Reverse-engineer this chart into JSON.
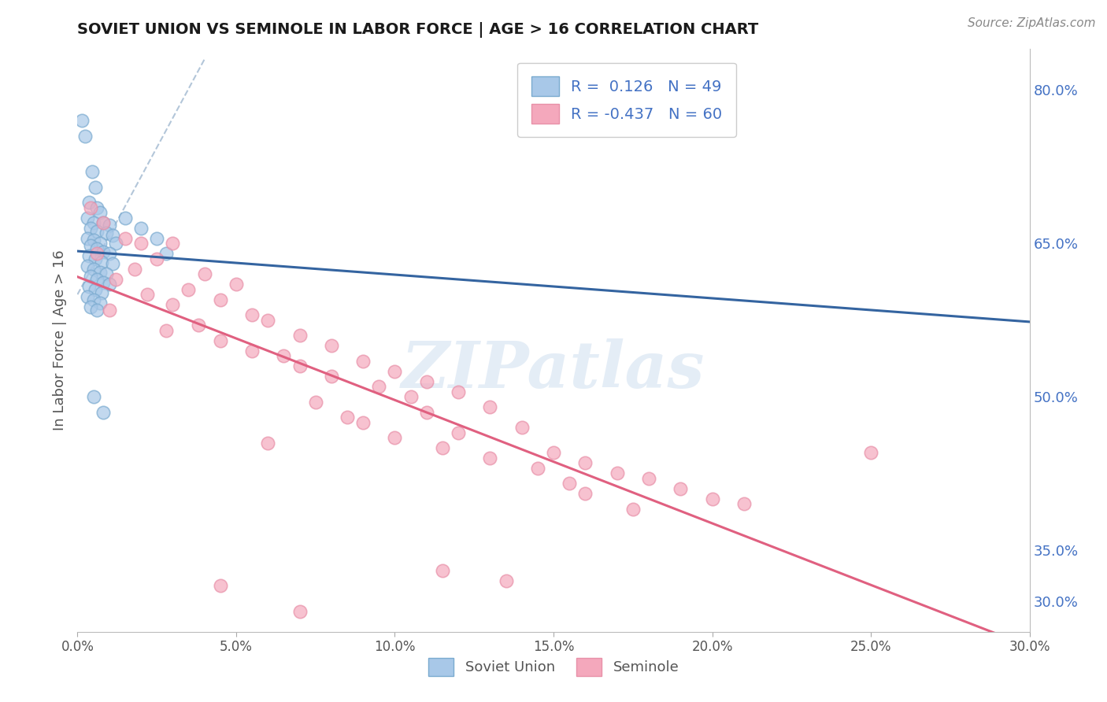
{
  "title": "SOVIET UNION VS SEMINOLE IN LABOR FORCE | AGE > 16 CORRELATION CHART",
  "source": "Source: ZipAtlas.com",
  "ylabel": "In Labor Force | Age > 16",
  "x_tick_vals": [
    0.0,
    5.0,
    10.0,
    15.0,
    20.0,
    25.0,
    30.0
  ],
  "y_tick_vals_right": [
    30.0,
    35.0,
    50.0,
    65.0,
    80.0
  ],
  "xlim": [
    0.0,
    30.0
  ],
  "ylim": [
    27.0,
    84.0
  ],
  "R_blue": 0.126,
  "N_blue": 49,
  "R_pink": -0.437,
  "N_pink": 60,
  "blue_color": "#a8c8e8",
  "pink_color": "#f4a8bc",
  "blue_edge_color": "#7aaacf",
  "pink_edge_color": "#e890a8",
  "blue_line_color": "#3464a0",
  "pink_line_color": "#e06080",
  "dash_line_color": "#a0b8d0",
  "blue_scatter": [
    [
      0.15,
      77.0
    ],
    [
      0.25,
      75.5
    ],
    [
      0.45,
      72.0
    ],
    [
      0.55,
      70.5
    ],
    [
      0.35,
      69.0
    ],
    [
      0.6,
      68.5
    ],
    [
      0.7,
      68.0
    ],
    [
      0.3,
      67.5
    ],
    [
      0.5,
      67.0
    ],
    [
      0.8,
      67.0
    ],
    [
      1.0,
      66.8
    ],
    [
      0.4,
      66.5
    ],
    [
      0.6,
      66.2
    ],
    [
      0.9,
      66.0
    ],
    [
      1.1,
      65.8
    ],
    [
      0.3,
      65.5
    ],
    [
      0.5,
      65.3
    ],
    [
      0.7,
      65.0
    ],
    [
      1.2,
      65.0
    ],
    [
      0.4,
      64.8
    ],
    [
      0.6,
      64.5
    ],
    [
      0.8,
      64.2
    ],
    [
      1.0,
      64.0
    ],
    [
      0.35,
      63.8
    ],
    [
      0.55,
      63.5
    ],
    [
      0.75,
      63.2
    ],
    [
      1.1,
      63.0
    ],
    [
      0.3,
      62.8
    ],
    [
      0.5,
      62.5
    ],
    [
      0.7,
      62.2
    ],
    [
      0.9,
      62.0
    ],
    [
      0.4,
      61.8
    ],
    [
      0.6,
      61.5
    ],
    [
      0.8,
      61.2
    ],
    [
      1.0,
      61.0
    ],
    [
      0.35,
      60.8
    ],
    [
      0.55,
      60.5
    ],
    [
      0.75,
      60.2
    ],
    [
      0.3,
      59.8
    ],
    [
      0.5,
      59.5
    ],
    [
      0.7,
      59.2
    ],
    [
      0.4,
      58.8
    ],
    [
      0.6,
      58.5
    ],
    [
      1.5,
      67.5
    ],
    [
      2.0,
      66.5
    ],
    [
      2.5,
      65.5
    ],
    [
      2.8,
      64.0
    ],
    [
      0.5,
      50.0
    ],
    [
      0.8,
      48.5
    ]
  ],
  "pink_scatter": [
    [
      0.4,
      68.5
    ],
    [
      0.8,
      67.0
    ],
    [
      1.5,
      65.5
    ],
    [
      2.0,
      65.0
    ],
    [
      3.0,
      65.0
    ],
    [
      0.6,
      64.0
    ],
    [
      2.5,
      63.5
    ],
    [
      1.8,
      62.5
    ],
    [
      4.0,
      62.0
    ],
    [
      1.2,
      61.5
    ],
    [
      5.0,
      61.0
    ],
    [
      3.5,
      60.5
    ],
    [
      2.2,
      60.0
    ],
    [
      4.5,
      59.5
    ],
    [
      3.0,
      59.0
    ],
    [
      1.0,
      58.5
    ],
    [
      5.5,
      58.0
    ],
    [
      6.0,
      57.5
    ],
    [
      3.8,
      57.0
    ],
    [
      2.8,
      56.5
    ],
    [
      7.0,
      56.0
    ],
    [
      4.5,
      55.5
    ],
    [
      8.0,
      55.0
    ],
    [
      5.5,
      54.5
    ],
    [
      6.5,
      54.0
    ],
    [
      9.0,
      53.5
    ],
    [
      7.0,
      53.0
    ],
    [
      10.0,
      52.5
    ],
    [
      8.0,
      52.0
    ],
    [
      11.0,
      51.5
    ],
    [
      9.5,
      51.0
    ],
    [
      12.0,
      50.5
    ],
    [
      10.5,
      50.0
    ],
    [
      7.5,
      49.5
    ],
    [
      13.0,
      49.0
    ],
    [
      11.0,
      48.5
    ],
    [
      8.5,
      48.0
    ],
    [
      9.0,
      47.5
    ],
    [
      14.0,
      47.0
    ],
    [
      12.0,
      46.5
    ],
    [
      10.0,
      46.0
    ],
    [
      6.0,
      45.5
    ],
    [
      11.5,
      45.0
    ],
    [
      15.0,
      44.5
    ],
    [
      13.0,
      44.0
    ],
    [
      16.0,
      43.5
    ],
    [
      14.5,
      43.0
    ],
    [
      17.0,
      42.5
    ],
    [
      18.0,
      42.0
    ],
    [
      15.5,
      41.5
    ],
    [
      19.0,
      41.0
    ],
    [
      16.0,
      40.5
    ],
    [
      20.0,
      40.0
    ],
    [
      21.0,
      39.5
    ],
    [
      17.5,
      39.0
    ],
    [
      25.0,
      44.5
    ],
    [
      4.5,
      31.5
    ],
    [
      7.0,
      29.0
    ],
    [
      11.5,
      33.0
    ],
    [
      13.5,
      32.0
    ]
  ],
  "watermark": "ZIPatlas",
  "background_color": "#ffffff",
  "grid_color": "#dddddd",
  "legend_text_color": "#4472c4",
  "legend_R_color": "#4472c4",
  "title_color": "#1a1a1a",
  "axis_label_color": "#555555",
  "right_axis_color": "#4472c4"
}
